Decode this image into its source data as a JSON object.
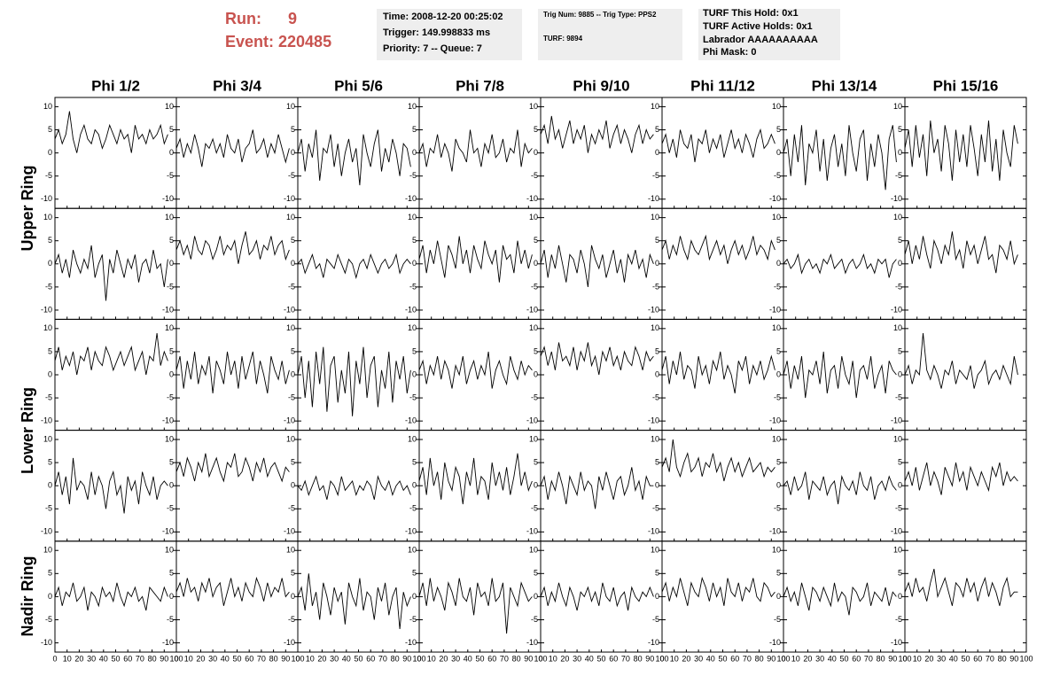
{
  "header": {
    "run_label": "Run:",
    "run": "9",
    "event": "Event: 220485",
    "box1": [
      "Time: 2008-12-20 00:25:02",
      "Trigger: 149.998833 ms",
      "Priority: 7 -- Queue: 7"
    ],
    "box2": [
      "Trig Num: 9885 -- Trig Type: PPS2",
      "TURF: 9894"
    ],
    "box3": [
      "TURF This Hold: 0x1",
      "TURF Active Holds: 0x1",
      "Labrador AAAAAAAAAA",
      "Phi Mask: 0"
    ]
  },
  "plot": {
    "columns": [
      "Phi 1/2",
      "Phi 3/4",
      "Phi 5/6",
      "Phi 7/8",
      "Phi 9/10",
      "Phi 11/12",
      "Phi 13/14",
      "Phi 15/16"
    ],
    "rings": [
      "Upper Ring",
      "Lower Ring",
      "Nadir Ring"
    ],
    "xlim": [
      0,
      100
    ],
    "xticks": [
      0,
      10,
      20,
      30,
      40,
      50,
      60,
      70,
      80,
      90,
      100
    ],
    "ylim": [
      -12,
      12
    ],
    "yticks": [
      -10,
      -5,
      0,
      5,
      10
    ],
    "x": [
      0,
      3,
      6,
      9,
      12,
      15,
      18,
      21,
      24,
      27,
      30,
      33,
      36,
      39,
      42,
      45,
      48,
      51,
      54,
      57,
      60,
      63,
      66,
      69,
      72,
      75,
      78,
      81,
      84,
      87,
      90,
      93
    ],
    "panels": [
      [
        [
          3,
          5,
          2,
          4,
          9,
          3,
          0,
          4,
          6,
          3,
          2,
          5,
          4,
          1,
          3,
          6,
          4,
          2,
          5,
          3,
          4,
          0,
          6,
          3,
          4,
          2,
          5,
          3,
          4,
          6,
          2,
          4
        ],
        [
          1,
          3,
          -1,
          2,
          0,
          4,
          1,
          -3,
          2,
          1,
          3,
          0,
          2,
          -1,
          4,
          1,
          0,
          3,
          -2,
          1,
          2,
          5,
          0,
          1,
          3,
          -1,
          2,
          0,
          4,
          1,
          -2,
          1
        ],
        [
          0,
          3,
          -4,
          2,
          -1,
          5,
          -6,
          1,
          0,
          4,
          -3,
          2,
          -5,
          0,
          3,
          -2,
          1,
          -7,
          4,
          0,
          -3,
          2,
          5,
          -4,
          1,
          -2,
          3,
          0,
          -5,
          2,
          1,
          -3
        ],
        [
          0,
          2,
          -3,
          1,
          0,
          4,
          -1,
          2,
          0,
          -4,
          3,
          1,
          0,
          -2,
          5,
          0,
          1,
          -3,
          2,
          0,
          4,
          -1,
          0,
          3,
          -2,
          1,
          0,
          5,
          -3,
          2,
          0,
          1
        ],
        [
          4,
          6,
          2,
          8,
          3,
          5,
          1,
          4,
          7,
          2,
          5,
          3,
          6,
          0,
          4,
          2,
          5,
          3,
          7,
          1,
          4,
          6,
          2,
          5,
          3,
          0,
          4,
          6,
          2,
          5,
          3,
          4
        ],
        [
          2,
          4,
          0,
          3,
          -1,
          5,
          2,
          1,
          4,
          -2,
          3,
          2,
          5,
          0,
          3,
          1,
          4,
          -1,
          2,
          5,
          1,
          3,
          0,
          4,
          2,
          -1,
          3,
          5,
          1,
          2,
          4,
          2
        ],
        [
          0,
          3,
          -5,
          4,
          -2,
          6,
          -7,
          2,
          0,
          5,
          -4,
          3,
          -6,
          1,
          4,
          -3,
          2,
          -5,
          6,
          0,
          -4,
          3,
          5,
          -6,
          2,
          -3,
          4,
          0,
          -8,
          3,
          6,
          -2
        ],
        [
          1,
          5,
          -3,
          6,
          -1,
          4,
          -5,
          7,
          0,
          3,
          -4,
          6,
          2,
          -6,
          5,
          -2,
          4,
          -3,
          6,
          1,
          -5,
          4,
          -2,
          7,
          -4,
          3,
          -6,
          5,
          0,
          -3,
          6,
          2
        ]
      ],
      [
        [
          0,
          2,
          -2,
          1,
          -3,
          3,
          0,
          -2,
          1,
          -1,
          4,
          -3,
          0,
          2,
          -8,
          1,
          -2,
          3,
          0,
          -3,
          1,
          -1,
          2,
          -4,
          0,
          1,
          -2,
          3,
          -1,
          0,
          -5,
          1
        ],
        [
          3,
          5,
          2,
          4,
          1,
          6,
          3,
          2,
          5,
          4,
          1,
          3,
          6,
          2,
          4,
          3,
          5,
          0,
          4,
          7,
          2,
          3,
          5,
          1,
          4,
          3,
          6,
          2,
          4,
          5,
          1,
          3
        ],
        [
          0,
          1,
          -2,
          0,
          2,
          -1,
          0,
          -3,
          1,
          0,
          -1,
          2,
          0,
          -2,
          1,
          0,
          -3,
          0,
          1,
          -1,
          2,
          0,
          -2,
          0,
          1,
          -1,
          0,
          2,
          -2,
          0,
          1,
          0
        ],
        [
          1,
          4,
          -2,
          3,
          0,
          5,
          1,
          -3,
          4,
          2,
          -1,
          6,
          0,
          3,
          -2,
          4,
          1,
          -1,
          5,
          2,
          0,
          3,
          -4,
          4,
          1,
          2,
          -2,
          5,
          0,
          3,
          -1,
          2
        ],
        [
          0,
          3,
          -3,
          2,
          -1,
          4,
          0,
          -4,
          2,
          1,
          -2,
          3,
          0,
          -5,
          4,
          1,
          -1,
          2,
          -3,
          0,
          3,
          -2,
          1,
          -4,
          2,
          0,
          3,
          -1,
          1,
          -3,
          2,
          0
        ],
        [
          3,
          5,
          1,
          4,
          2,
          6,
          3,
          1,
          5,
          3,
          2,
          4,
          6,
          1,
          3,
          5,
          2,
          4,
          0,
          3,
          5,
          2,
          4,
          1,
          3,
          6,
          2,
          4,
          3,
          1,
          5,
          3
        ],
        [
          0,
          1,
          -1,
          0,
          2,
          -2,
          0,
          1,
          -1,
          0,
          -2,
          1,
          0,
          2,
          -1,
          0,
          1,
          -2,
          0,
          1,
          -1,
          0,
          2,
          -1,
          0,
          -2,
          1,
          0,
          1,
          -3,
          0,
          1
        ],
        [
          2,
          5,
          0,
          4,
          1,
          6,
          2,
          -1,
          5,
          3,
          0,
          4,
          2,
          7,
          1,
          3,
          -1,
          5,
          2,
          4,
          0,
          3,
          6,
          1,
          2,
          -2,
          4,
          3,
          1,
          5,
          0,
          2
        ]
      ],
      [
        [
          3,
          6,
          1,
          4,
          2,
          5,
          0,
          4,
          3,
          6,
          1,
          5,
          3,
          2,
          6,
          4,
          1,
          3,
          5,
          2,
          4,
          6,
          1,
          3,
          5,
          0,
          4,
          3,
          9,
          2,
          5,
          3
        ],
        [
          1,
          4,
          -3,
          3,
          -1,
          5,
          -2,
          2,
          0,
          4,
          -4,
          3,
          1,
          -2,
          5,
          0,
          3,
          -3,
          4,
          -1,
          2,
          5,
          -2,
          3,
          0,
          -4,
          4,
          1,
          -1,
          3,
          -2,
          1
        ],
        [
          0,
          4,
          -5,
          3,
          -7,
          5,
          -2,
          6,
          -8,
          2,
          4,
          -6,
          1,
          -4,
          5,
          -9,
          3,
          -2,
          6,
          -5,
          2,
          4,
          -7,
          1,
          -3,
          5,
          -6,
          3,
          -1,
          4,
          -4,
          1
        ],
        [
          1,
          3,
          -2,
          2,
          0,
          4,
          -1,
          3,
          1,
          -3,
          2,
          0,
          4,
          -2,
          1,
          3,
          -1,
          2,
          0,
          5,
          -3,
          1,
          3,
          0,
          -2,
          4,
          1,
          -1,
          3,
          0,
          2,
          1
        ],
        [
          4,
          6,
          2,
          5,
          1,
          7,
          3,
          4,
          2,
          6,
          1,
          5,
          3,
          7,
          2,
          4,
          0,
          5,
          3,
          6,
          2,
          4,
          1,
          5,
          3,
          2,
          6,
          4,
          1,
          5,
          3,
          4
        ],
        [
          1,
          4,
          -2,
          3,
          0,
          5,
          -1,
          2,
          1,
          -3,
          4,
          0,
          2,
          -2,
          3,
          1,
          5,
          -1,
          2,
          0,
          -4,
          3,
          1,
          4,
          -2,
          2,
          0,
          3,
          -1,
          1,
          4,
          1
        ],
        [
          0,
          3,
          -3,
          2,
          -1,
          4,
          -5,
          1,
          0,
          3,
          -2,
          5,
          -4,
          1,
          2,
          -3,
          4,
          0,
          -2,
          3,
          -5,
          1,
          2,
          -1,
          4,
          -3,
          0,
          2,
          -4,
          3,
          1,
          0
        ],
        [
          0,
          2,
          -2,
          1,
          0,
          9,
          1,
          -1,
          2,
          0,
          -3,
          1,
          0,
          3,
          -2,
          1,
          0,
          -1,
          2,
          -3,
          0,
          1,
          3,
          -2,
          0,
          1,
          -1,
          2,
          0,
          -2,
          4,
          0
        ]
      ],
      [
        [
          0,
          3,
          -2,
          2,
          -4,
          6,
          -1,
          1,
          0,
          -3,
          3,
          -2,
          2,
          0,
          -5,
          1,
          3,
          -2,
          0,
          -6,
          2,
          -1,
          1,
          -4,
          3,
          0,
          -2,
          2,
          -3,
          0,
          1,
          0
        ],
        [
          3,
          5,
          2,
          6,
          4,
          1,
          5,
          3,
          7,
          2,
          4,
          6,
          3,
          1,
          5,
          4,
          7,
          2,
          3,
          6,
          4,
          1,
          5,
          3,
          6,
          2,
          4,
          5,
          3,
          1,
          4,
          3
        ],
        [
          0,
          -1,
          1,
          -2,
          0,
          2,
          -1,
          0,
          -3,
          1,
          0,
          -2,
          2,
          -1,
          0,
          1,
          -2,
          0,
          -1,
          1,
          0,
          -3,
          2,
          0,
          -1,
          1,
          -2,
          0,
          1,
          -1,
          0,
          -2
        ],
        [
          1,
          4,
          -2,
          6,
          0,
          3,
          -3,
          5,
          1,
          -1,
          4,
          2,
          -4,
          3,
          0,
          6,
          -2,
          2,
          1,
          -3,
          5,
          0,
          3,
          -1,
          4,
          -2,
          2,
          7,
          0,
          3,
          -1,
          1
        ],
        [
          0,
          2,
          -3,
          1,
          -1,
          3,
          0,
          -4,
          2,
          0,
          -2,
          3,
          -1,
          1,
          0,
          -5,
          2,
          -1,
          3,
          0,
          -3,
          1,
          2,
          -2,
          0,
          4,
          -1,
          1,
          -3,
          2,
          0,
          0
        ],
        [
          4,
          6,
          3,
          10,
          4,
          2,
          5,
          7,
          3,
          4,
          6,
          2,
          5,
          4,
          7,
          3,
          5,
          1,
          4,
          6,
          3,
          5,
          2,
          4,
          6,
          3,
          4,
          5,
          2,
          4,
          3,
          4
        ],
        [
          0,
          1,
          -2,
          2,
          -1,
          0,
          3,
          -3,
          1,
          0,
          -1,
          2,
          -2,
          0,
          1,
          -4,
          2,
          0,
          -1,
          1,
          -2,
          3,
          0,
          -1,
          2,
          -3,
          0,
          1,
          -1,
          2,
          0,
          -1
        ],
        [
          1,
          3,
          0,
          4,
          -1,
          2,
          5,
          0,
          3,
          1,
          -2,
          4,
          2,
          0,
          5,
          1,
          3,
          -1,
          4,
          2,
          0,
          3,
          1,
          -1,
          4,
          2,
          5,
          0,
          3,
          1,
          2,
          1
        ]
      ],
      [
        [
          0,
          2,
          -2,
          1,
          0,
          3,
          -1,
          0,
          2,
          -3,
          1,
          0,
          -2,
          2,
          0,
          1,
          -1,
          3,
          0,
          -2,
          1,
          0,
          2,
          -1,
          0,
          -3,
          2,
          1,
          0,
          -1,
          2,
          0
        ],
        [
          1,
          3,
          0,
          4,
          1,
          2,
          -1,
          3,
          1,
          4,
          0,
          2,
          3,
          -2,
          1,
          4,
          0,
          2,
          -1,
          3,
          1,
          0,
          4,
          2,
          -1,
          3,
          0,
          2,
          1,
          4,
          0,
          1
        ],
        [
          0,
          2,
          -3,
          5,
          -2,
          1,
          -5,
          3,
          0,
          -4,
          2,
          -1,
          1,
          -6,
          3,
          0,
          -2,
          4,
          -3,
          1,
          0,
          -5,
          2,
          -1,
          3,
          -4,
          0,
          2,
          -7,
          1,
          -2,
          0
        ],
        [
          0,
          3,
          -2,
          4,
          -1,
          2,
          0,
          -3,
          3,
          1,
          -2,
          4,
          0,
          -1,
          2,
          -4,
          3,
          0,
          1,
          -2,
          4,
          -1,
          0,
          3,
          -8,
          2,
          0,
          -2,
          3,
          1,
          -1,
          0
        ],
        [
          0,
          2,
          -2,
          1,
          -1,
          3,
          0,
          -2,
          2,
          0,
          -3,
          1,
          0,
          2,
          -1,
          1,
          -2,
          3,
          0,
          -1,
          2,
          -2,
          0,
          1,
          -3,
          2,
          0,
          -1,
          1,
          0,
          2,
          0
        ],
        [
          1,
          3,
          -1,
          2,
          0,
          4,
          1,
          -2,
          3,
          1,
          0,
          4,
          2,
          -1,
          3,
          0,
          2,
          -2,
          4,
          1,
          0,
          3,
          -1,
          2,
          1,
          4,
          0,
          -1,
          3,
          2,
          0,
          1
        ],
        [
          0,
          2,
          -1,
          1,
          -2,
          3,
          0,
          -3,
          2,
          1,
          -1,
          2,
          0,
          -2,
          3,
          -1,
          1,
          0,
          -4,
          2,
          1,
          -1,
          0,
          3,
          -2,
          1,
          0,
          -1,
          2,
          -2,
          1,
          0
        ],
        [
          1,
          3,
          0,
          4,
          1,
          2,
          -1,
          3,
          6,
          0,
          2,
          4,
          1,
          -2,
          3,
          2,
          0,
          4,
          1,
          3,
          -1,
          2,
          4,
          0,
          3,
          1,
          -2,
          2,
          4,
          0,
          1,
          1
        ]
      ]
    ]
  }
}
